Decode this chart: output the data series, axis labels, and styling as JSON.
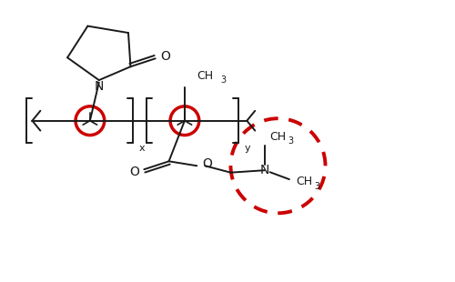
{
  "background_color": "#ffffff",
  "line_color": "#1a1a1a",
  "red_color": "#cc0000",
  "figure_width": 5.0,
  "figure_height": 3.1,
  "dpi": 100,
  "xlim": [
    0,
    10
  ],
  "ylim": [
    0,
    6.2
  ]
}
